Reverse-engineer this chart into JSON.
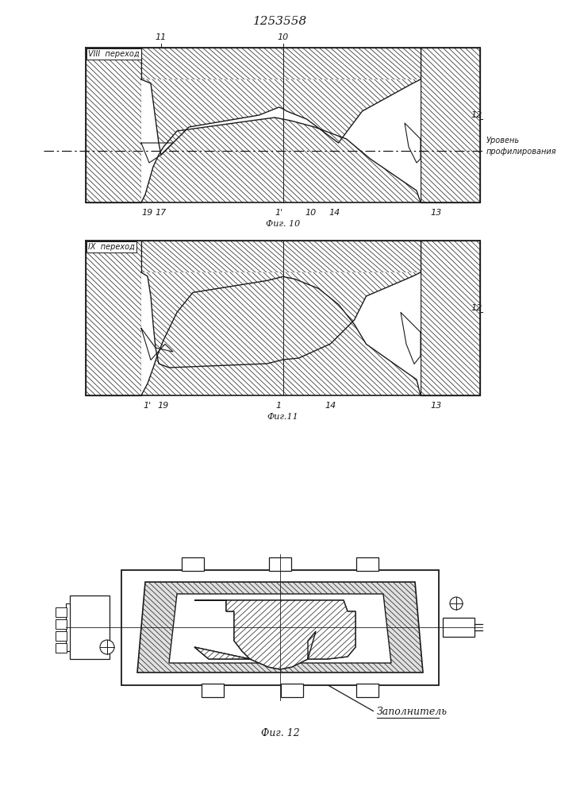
{
  "title": "1253558",
  "line_color": "#1a1a1a",
  "fig10_label": "Фиг. 10",
  "fig11_label": "Фиг.11",
  "fig12_label": "Фиг. 12",
  "label_viii": "VIII  переход",
  "label_ix": "IX  переход",
  "label_uroven": "Уровень\nпрофилирования",
  "label_zapol": "Заполнитель"
}
